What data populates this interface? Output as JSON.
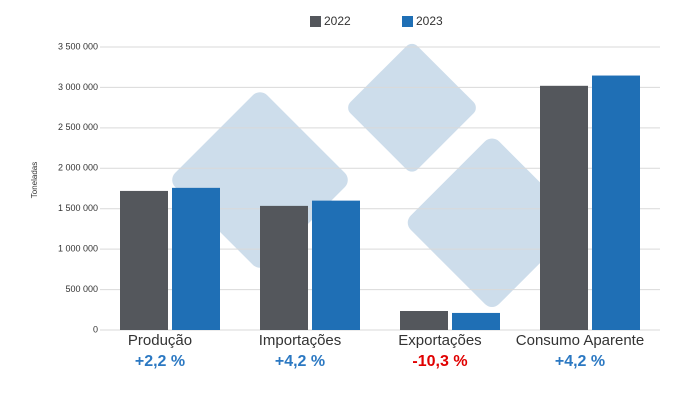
{
  "chart_data": {
    "type": "bar",
    "y_label": "Toneladas",
    "categories": [
      "Produção",
      "Importações",
      "Exportações",
      "Consumo Aparente"
    ],
    "series": [
      {
        "name": "2022",
        "color": "#54575c",
        "values": [
          1720000,
          1535000,
          235000,
          3020000
        ]
      },
      {
        "name": "2023",
        "color": "#1f6fb5",
        "values": [
          1758000,
          1600000,
          211000,
          3147000
        ]
      }
    ],
    "changes": [
      {
        "label": "+2,2 %",
        "color": "#2b78c2"
      },
      {
        "label": "+4,2 %",
        "color": "#2b78c2"
      },
      {
        "label": "-10,3 %",
        "color": "#e00000"
      },
      {
        "label": "+4,2 %",
        "color": "#2b78c2"
      }
    ],
    "ylim": [
      0,
      3500000
    ],
    "yticks": [
      0,
      {
        "value": 500000,
        "label": "500 000"
      },
      {
        "value": 1000000,
        "label": "1 000 000"
      },
      {
        "value": 1500000,
        "label": "1 500 000"
      },
      {
        "value": 2000000,
        "label": "2 000 000"
      },
      {
        "value": 2500000,
        "label": "2 500 000"
      },
      {
        "value": 3000000,
        "label": "3 000 000"
      },
      {
        "value": 3500000,
        "label": "3 500 000"
      }
    ],
    "grid": true,
    "legend": "top"
  }
}
